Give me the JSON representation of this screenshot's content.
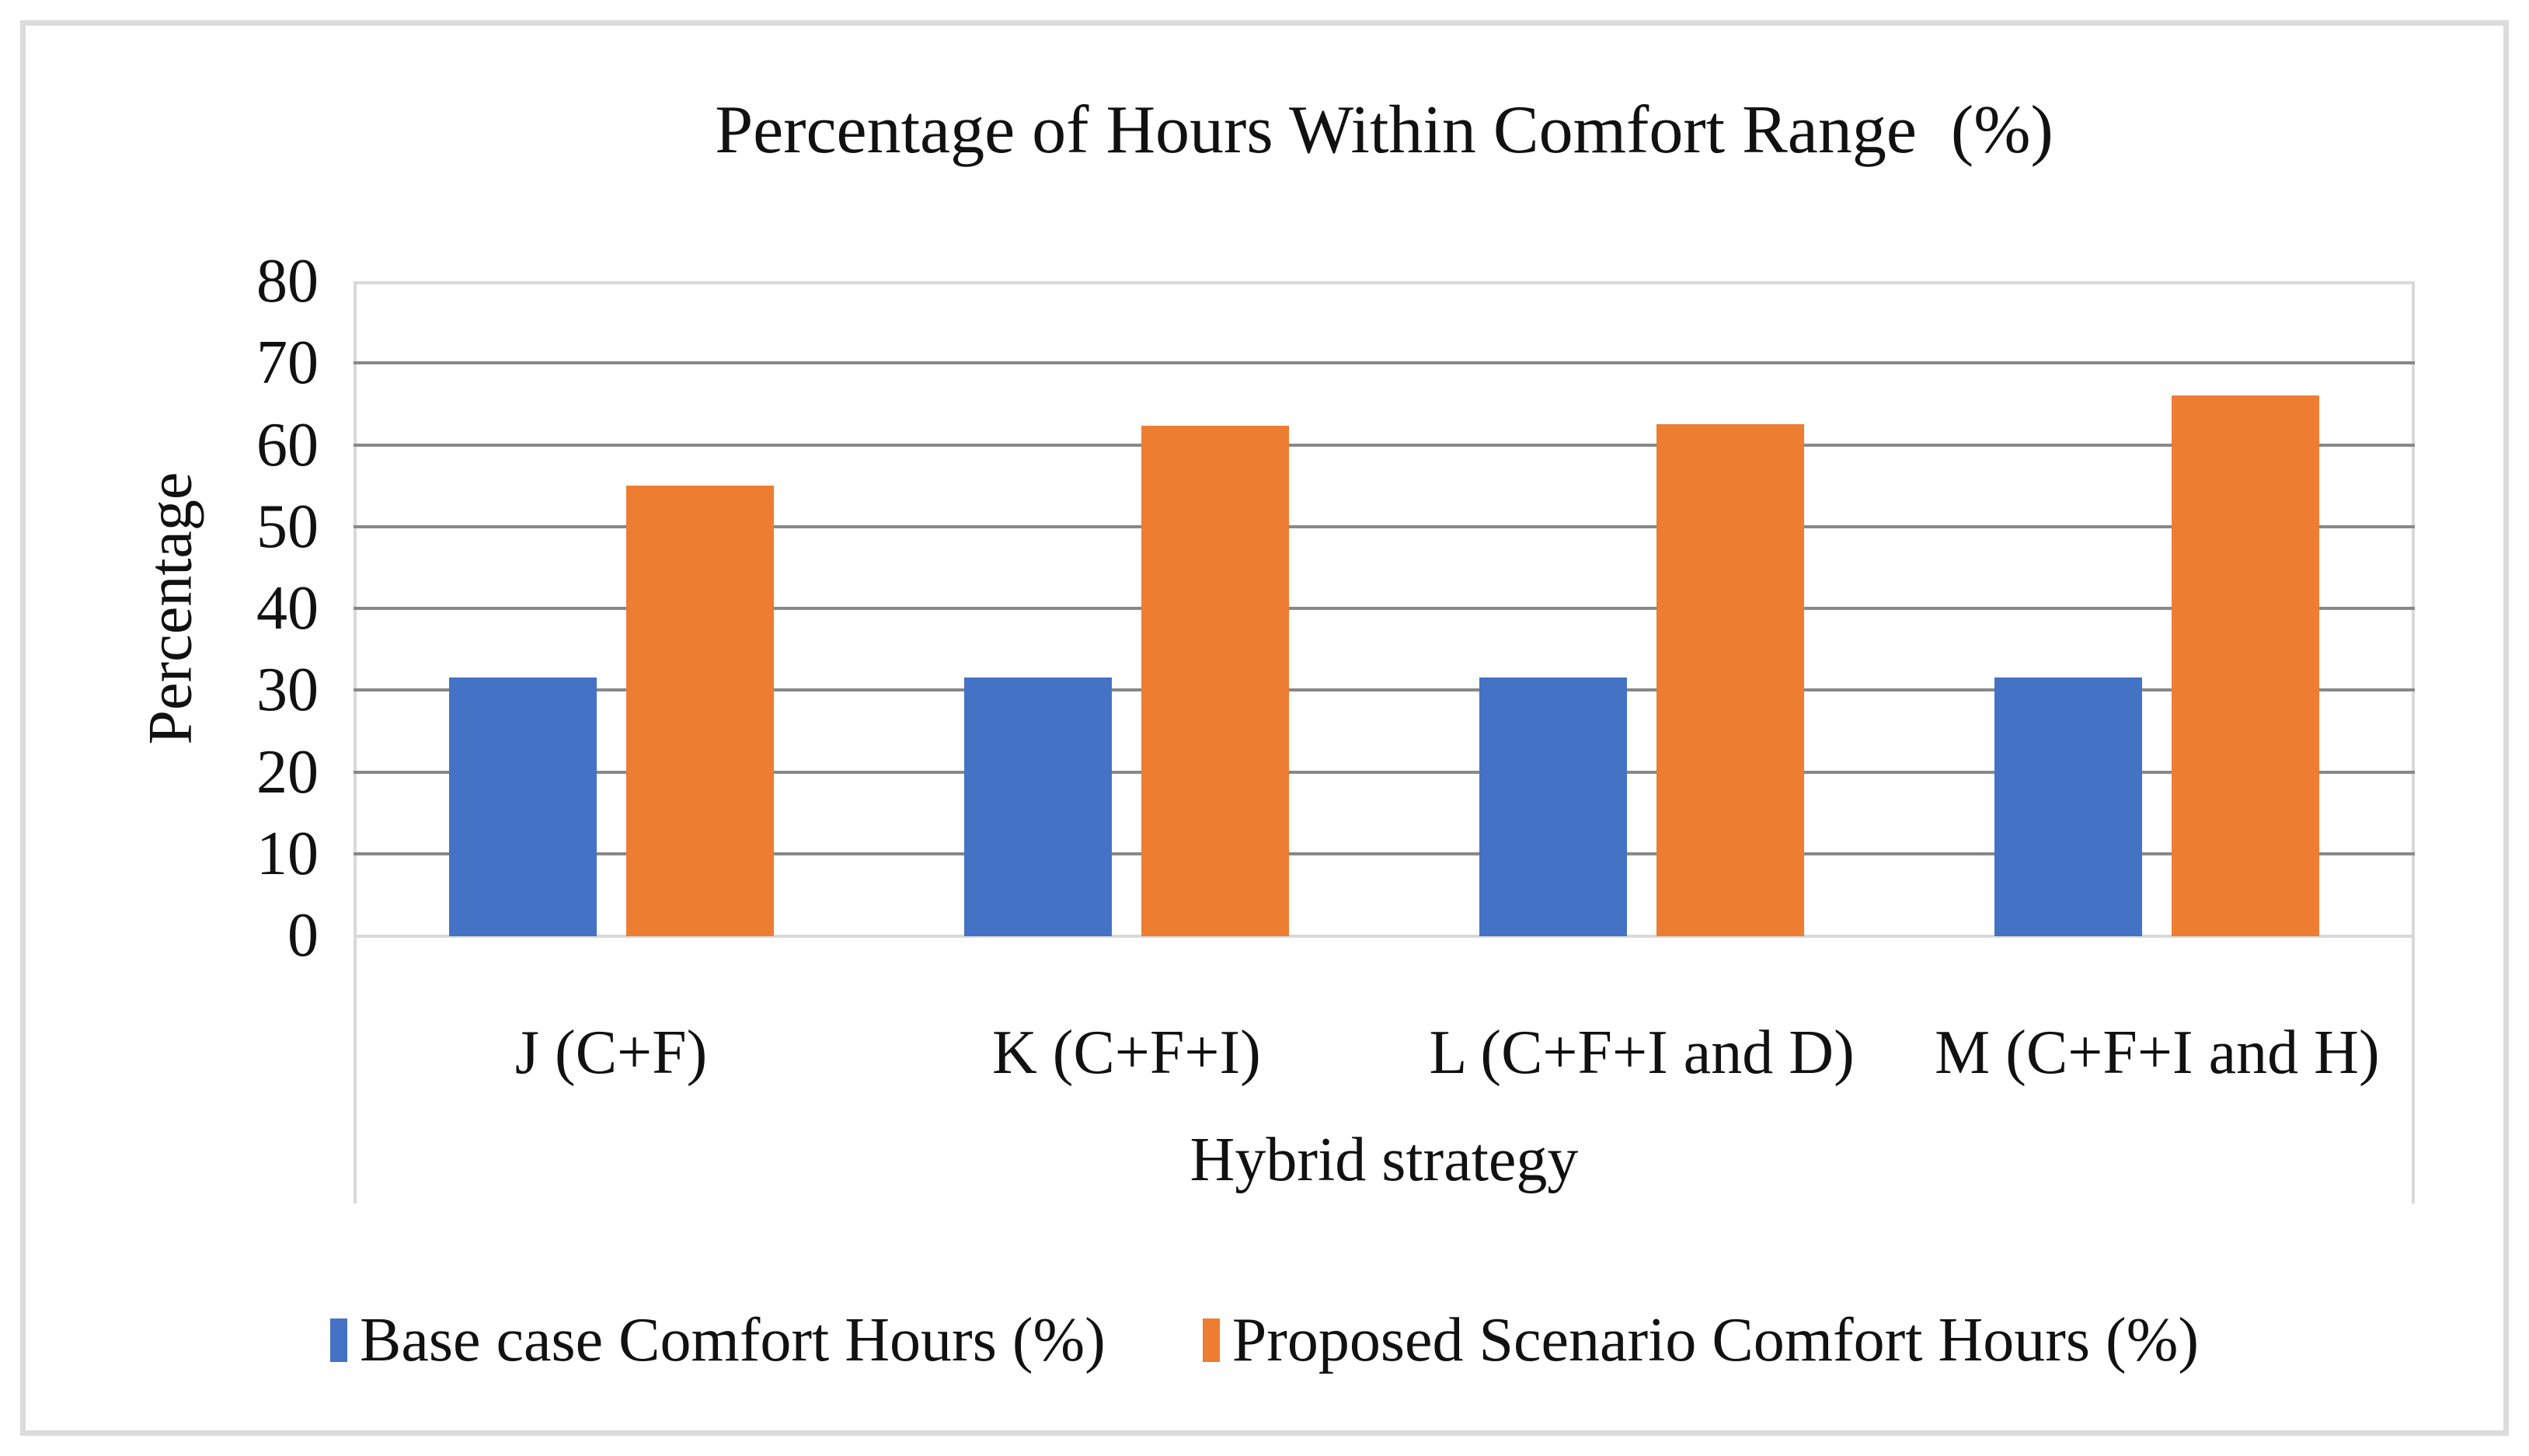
{
  "figure": {
    "type_note": "static clustered column chart figure",
    "border_color": "#dcdcdc",
    "background": "#ffffff"
  },
  "colors": {
    "series_base": "#4472C4",
    "series_proposed": "#ED7D31",
    "gridline_major": "#888888",
    "axis_line": "#d9d9d9",
    "text": "#111111"
  },
  "chart_data": {
    "type": "bar",
    "title": "Percentage of Hours Within Comfort Range  (%)",
    "xlabel": "Hybrid strategy",
    "ylabel": "Percentage",
    "ylim": [
      0,
      80
    ],
    "ytick_step": 10,
    "ytick_labels": [
      "0",
      "10",
      "20",
      "30",
      "40",
      "50",
      "60",
      "70",
      "80"
    ],
    "grid": "horizontal major gridlines on",
    "legend_position": "bottom",
    "categories": [
      "J (C+F)",
      "K (C+F+I)",
      "L (C+F+I and D)",
      "M (C+F+I and H)"
    ],
    "series": [
      {
        "name": "Base case Comfort Hours (%)",
        "color": "#4472C4",
        "values": [
          31.5,
          31.5,
          31.5,
          31.5
        ]
      },
      {
        "name": "Proposed Scenario Comfort Hours (%)",
        "color": "#ED7D31",
        "values": [
          55,
          62.3,
          62.5,
          66
        ]
      }
    ]
  }
}
